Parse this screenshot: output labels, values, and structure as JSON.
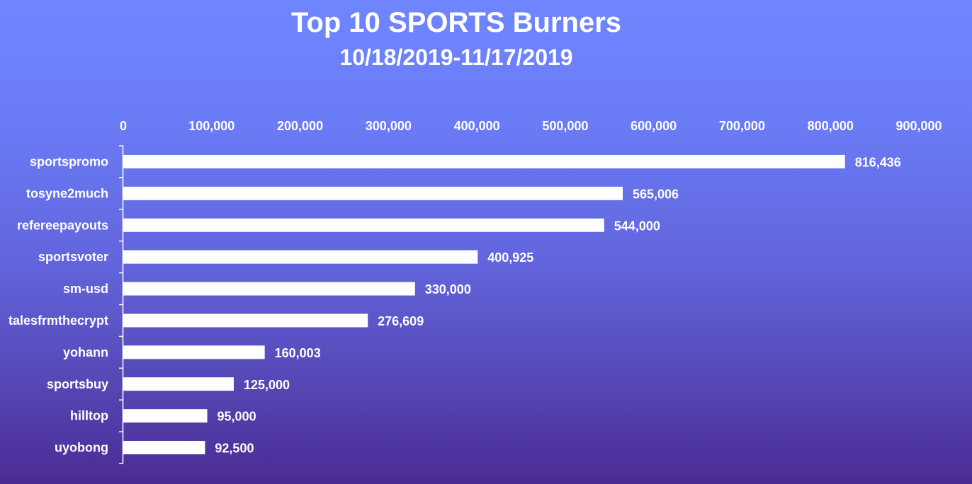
{
  "chart_data": {
    "type": "bar",
    "orientation": "horizontal",
    "title": "Top 10 SPORTS Burners",
    "subtitle": "10/18/2019-11/17/2019",
    "categories": [
      "sportspromo",
      "tosyne2much",
      "refereepayouts",
      "sportsvoter",
      "sm-usd",
      "talesfrmthecrypt",
      "yohann",
      "sportsbuy",
      "hilltop",
      "uyobong"
    ],
    "values": [
      816436,
      565006,
      544000,
      400925,
      330000,
      276609,
      160003,
      125000,
      95000,
      92500
    ],
    "value_labels": [
      "816,436",
      "565,006",
      "544,000",
      "400,925",
      "330,000",
      "276,609",
      "160,003",
      "125,000",
      "95,000",
      "92,500"
    ],
    "xlim": [
      0,
      900000
    ],
    "x_ticks": [
      0,
      100000,
      200000,
      300000,
      400000,
      500000,
      600000,
      700000,
      800000,
      900000
    ],
    "x_tick_labels": [
      "0",
      "100,000",
      "200,000",
      "300,000",
      "400,000",
      "500,000",
      "600,000",
      "700,000",
      "800,000",
      "900,000"
    ],
    "x_axis_position": "top",
    "grid": false,
    "legend": "none",
    "colors": {
      "bar": "#ffffff",
      "text": "#ffffff",
      "axis": "#ffffff",
      "background_top": "#6f86ff",
      "background_bottom": "#4a2b94"
    }
  }
}
